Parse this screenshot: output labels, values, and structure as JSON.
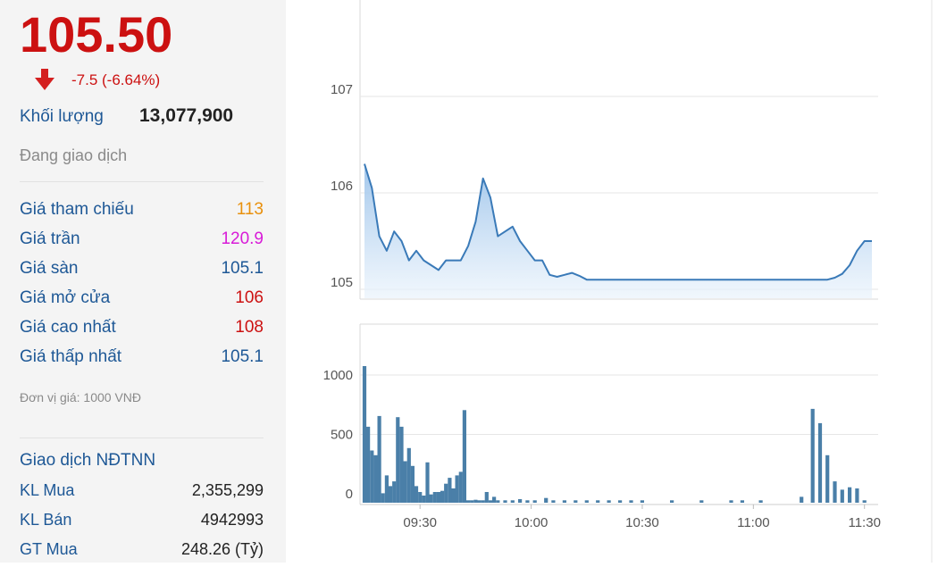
{
  "quote": {
    "price": "105.50",
    "change": "-7.5 (-6.64%)",
    "volume_label": "Khối lượng",
    "volume_value": "13,077,900",
    "status": "Đang giao dịch"
  },
  "price_stats": [
    {
      "label": "Giá tham chiếu",
      "value": "113",
      "color": "#e8900c"
    },
    {
      "label": "Giá trần",
      "value": "120.9",
      "color": "#d81bd8"
    },
    {
      "label": "Giá sàn",
      "value": "105.1",
      "color": "#1e5896"
    },
    {
      "label": "Giá mở cửa",
      "value": "106",
      "color": "#cc1111"
    },
    {
      "label": "Giá cao nhất",
      "value": "108",
      "color": "#cc1111"
    },
    {
      "label": "Giá thấp nhất",
      "value": "105.1",
      "color": "#1e5896"
    }
  ],
  "unit_note": "Đơn vị giá: 1000 VNĐ",
  "foreign": {
    "title": "Giao dịch NĐTNN",
    "rows": [
      {
        "label": "KL Mua",
        "value": "2,355,299"
      },
      {
        "label": "KL Bán",
        "value": "4942993"
      },
      {
        "label": "GT Mua",
        "value": "248.26 (Tỷ)"
      }
    ]
  },
  "colors": {
    "down": "#cc1111",
    "line": "#3a7ab8",
    "bar": "#4a7fa8"
  },
  "chart_data": [
    {
      "type": "area",
      "ylim": [
        104.9,
        107.2
      ],
      "yticks": [
        "107",
        "106",
        "105"
      ],
      "ytick_values": [
        107,
        106,
        105
      ],
      "grid": true,
      "x": [
        "09:15",
        "09:17",
        "09:19",
        "09:21",
        "09:23",
        "09:25",
        "09:27",
        "09:29",
        "09:31",
        "09:33",
        "09:35",
        "09:37",
        "09:39",
        "09:41",
        "09:43",
        "09:45",
        "09:47",
        "09:49",
        "09:51",
        "09:53",
        "09:55",
        "09:57",
        "09:59",
        "10:01",
        "10:03",
        "10:05",
        "10:07",
        "10:09",
        "10:11",
        "10:13",
        "10:15",
        "10:20",
        "10:30",
        "10:40",
        "10:50",
        "11:00",
        "11:10",
        "11:20",
        "11:22",
        "11:24",
        "11:26",
        "11:28",
        "11:30",
        "11:32"
      ],
      "values": [
        106.3,
        106.05,
        105.55,
        105.4,
        105.6,
        105.5,
        105.3,
        105.4,
        105.3,
        105.25,
        105.2,
        105.3,
        105.3,
        105.3,
        105.45,
        105.7,
        106.15,
        105.95,
        105.55,
        105.6,
        105.65,
        105.5,
        105.4,
        105.3,
        105.3,
        105.15,
        105.13,
        105.15,
        105.17,
        105.14,
        105.1,
        105.1,
        105.1,
        105.1,
        105.1,
        105.1,
        105.1,
        105.1,
        105.12,
        105.16,
        105.25,
        105.4,
        105.5,
        105.5
      ]
    },
    {
      "type": "bar",
      "ylim": [
        0,
        1200
      ],
      "yticks": [
        "1000",
        "500",
        "0"
      ],
      "ytick_values": [
        1000,
        500,
        0
      ],
      "xticks": [
        "09:30",
        "10:00",
        "10:30",
        "11:00",
        "11:30"
      ],
      "grid": true,
      "x": [
        "09:15",
        "09:16",
        "09:17",
        "09:18",
        "09:19",
        "09:20",
        "09:21",
        "09:22",
        "09:23",
        "09:24",
        "09:25",
        "09:26",
        "09:27",
        "09:28",
        "09:29",
        "09:30",
        "09:31",
        "09:32",
        "09:33",
        "09:34",
        "09:35",
        "09:36",
        "09:37",
        "09:38",
        "09:39",
        "09:40",
        "09:41",
        "09:42",
        "09:43",
        "09:44",
        "09:45",
        "09:46",
        "09:47",
        "09:48",
        "09:49",
        "09:50",
        "09:51",
        "09:53",
        "09:55",
        "09:57",
        "09:59",
        "10:01",
        "10:04",
        "10:06",
        "10:09",
        "10:12",
        "10:15",
        "10:18",
        "10:21",
        "10:24",
        "10:27",
        "10:30",
        "10:38",
        "10:46",
        "10:54",
        "10:57",
        "11:02",
        "11:13",
        "11:16",
        "11:18",
        "11:20",
        "11:22",
        "11:24",
        "11:26",
        "11:28",
        "11:30"
      ],
      "values": [
        1150,
        640,
        440,
        400,
        730,
        80,
        230,
        140,
        180,
        720,
        640,
        350,
        460,
        310,
        140,
        90,
        60,
        340,
        70,
        90,
        90,
        100,
        160,
        210,
        120,
        230,
        260,
        780,
        20,
        20,
        25,
        20,
        20,
        90,
        20,
        50,
        20,
        20,
        20,
        30,
        20,
        20,
        40,
        20,
        20,
        20,
        20,
        20,
        20,
        20,
        20,
        20,
        20,
        20,
        20,
        20,
        20,
        50,
        790,
        670,
        400,
        180,
        110,
        130,
        120,
        20
      ]
    }
  ]
}
